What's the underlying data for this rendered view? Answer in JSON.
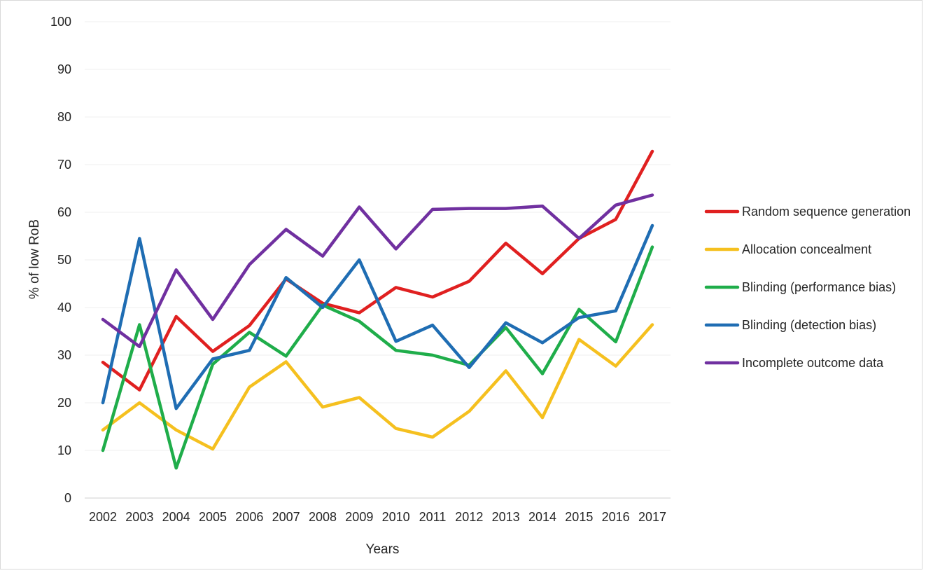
{
  "chart_data": {
    "type": "line",
    "title": "",
    "xlabel": "Years",
    "ylabel": "% of low RoB",
    "ylim": [
      0,
      100
    ],
    "yticks": [
      0,
      10,
      20,
      30,
      40,
      50,
      60,
      70,
      80,
      90,
      100
    ],
    "grid": true,
    "legend_position": "right",
    "categories": [
      "2002",
      "2003",
      "2004",
      "2005",
      "2006",
      "2007",
      "2008",
      "2009",
      "2010",
      "2011",
      "2012",
      "2013",
      "2014",
      "2015",
      "2016",
      "2017"
    ],
    "series": [
      {
        "name": "Random sequence generation",
        "color": "#e02020",
        "values": [
          28.5,
          22.7,
          38.1,
          30.8,
          36.2,
          46.0,
          40.9,
          38.9,
          44.2,
          42.2,
          45.5,
          53.5,
          47.1,
          54.5,
          58.5,
          72.8
        ]
      },
      {
        "name": "Allocation concealment",
        "color": "#f5c01f",
        "values": [
          14.3,
          20.0,
          14.3,
          10.3,
          23.3,
          28.6,
          19.1,
          21.1,
          14.6,
          12.8,
          18.2,
          26.7,
          16.9,
          33.3,
          27.7,
          36.4
        ]
      },
      {
        "name": "Blinding (performance bias)",
        "color": "#1fad4a",
        "values": [
          10.0,
          36.4,
          6.3,
          28.1,
          34.8,
          29.8,
          40.5,
          37.1,
          31.0,
          30.0,
          27.9,
          35.8,
          26.1,
          39.6,
          32.8,
          52.7
        ]
      },
      {
        "name": "Blinding (detection bias)",
        "color": "#1f6db3",
        "values": [
          20.0,
          54.5,
          18.8,
          29.2,
          31.0,
          46.3,
          40.0,
          50.0,
          32.9,
          36.3,
          27.4,
          36.8,
          32.6,
          37.9,
          39.3,
          57.2
        ]
      },
      {
        "name": "Incomplete outcome data",
        "color": "#7030a0",
        "values": [
          37.5,
          31.8,
          47.9,
          37.5,
          49.0,
          56.4,
          50.8,
          61.1,
          52.3,
          60.6,
          60.8,
          60.8,
          61.3,
          54.5,
          61.5,
          63.6
        ]
      }
    ]
  }
}
